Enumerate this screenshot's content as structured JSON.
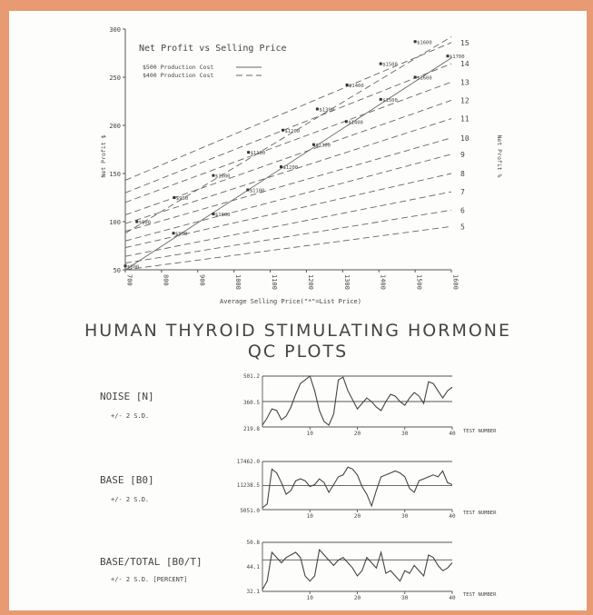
{
  "chart_data": [
    {
      "type": "line",
      "title": "Net Profit vs Selling Price",
      "xlabel": "Average Selling Price(\"*\"=List Price)",
      "ylabel": "Net Profit $",
      "ylabel_right": "Net Profit %",
      "xlim": [
        700,
        1600
      ],
      "ylim": [
        50,
        300
      ],
      "x_ticks": [
        "700",
        "800",
        "900",
        "1000",
        "1100",
        "1200",
        "1300",
        "1400",
        "1500",
        "1600"
      ],
      "y_ticks": [
        "50",
        "100",
        "150",
        "200",
        "250",
        "300"
      ],
      "right_ticks": [
        "5",
        "6",
        "7",
        "8",
        "9",
        "10",
        "11",
        "12",
        "13",
        "14",
        "15"
      ],
      "legend": [
        {
          "name": "$500 Production Cost",
          "style": "solid"
        },
        {
          "name": "$400 Production Cost",
          "style": "dashed"
        }
      ],
      "percent_lines": [
        {
          "pct": 5,
          "y_at_700": 50,
          "y_at_1600": 95
        },
        {
          "pct": 6,
          "y_at_700": 57,
          "y_at_1600": 112
        },
        {
          "pct": 7,
          "y_at_700": 64,
          "y_at_1600": 131
        },
        {
          "pct": 8,
          "y_at_700": 73,
          "y_at_1600": 150
        },
        {
          "pct": 9,
          "y_at_700": 80,
          "y_at_1600": 170
        },
        {
          "pct": 10,
          "y_at_700": 90,
          "y_at_1600": 187
        },
        {
          "pct": 11,
          "y_at_700": 98,
          "y_at_1600": 207
        },
        {
          "pct": 12,
          "y_at_700": 107,
          "y_at_1600": 226
        },
        {
          "pct": 13,
          "y_at_700": 120,
          "y_at_1600": 245
        },
        {
          "pct": 14,
          "y_at_700": 130,
          "y_at_1600": 264
        },
        {
          "pct": 15,
          "y_at_700": 143,
          "y_at_1600": 286
        }
      ],
      "series": [
        {
          "name": "$500 Production Cost",
          "style": "solid",
          "x": [
            700,
            1600
          ],
          "y": [
            50,
            270
          ],
          "points": [
            {
              "x": 700,
              "y": 54,
              "label": "$800"
            },
            {
              "x": 833,
              "y": 88,
              "label": "$900"
            },
            {
              "x": 943,
              "y": 108,
              "label": "$1000"
            },
            {
              "x": 1038,
              "y": 133,
              "label": "$1100"
            },
            {
              "x": 1130,
              "y": 157,
              "label": "$1200"
            },
            {
              "x": 1220,
              "y": 180,
              "label": "$1300"
            },
            {
              "x": 1310,
              "y": 204,
              "label": "$1400"
            },
            {
              "x": 1405,
              "y": 227,
              "label": "$1500"
            },
            {
              "x": 1500,
              "y": 250,
              "label": "$1600"
            },
            {
              "x": 1590,
              "y": 272,
              "label": "$1700"
            }
          ]
        },
        {
          "name": "$400 Production Cost",
          "style": "dashed",
          "x": [
            700,
            1600
          ],
          "y": [
            88,
            292
          ],
          "points": [
            {
              "x": 732,
              "y": 100,
              "label": "$800"
            },
            {
              "x": 835,
              "y": 125,
              "label": "$900"
            },
            {
              "x": 943,
              "y": 148,
              "label": "$1000"
            },
            {
              "x": 1040,
              "y": 172,
              "label": "$1100"
            },
            {
              "x": 1135,
              "y": 195,
              "label": "$1200"
            },
            {
              "x": 1230,
              "y": 217,
              "label": "$1300"
            },
            {
              "x": 1312,
              "y": 242,
              "label": "$1400"
            },
            {
              "x": 1405,
              "y": 264,
              "label": "$1500"
            },
            {
              "x": 1500,
              "y": 287,
              "label": "$1600"
            }
          ]
        }
      ]
    },
    {
      "type": "line",
      "title": "NOISE [N]",
      "subtitle": "+/- 2 S.D.",
      "xlabel": "TEST NUMBER",
      "x_ticks": [
        "10",
        "20",
        "30",
        "40"
      ],
      "xlim": [
        0,
        40
      ],
      "ylim": [
        219.8,
        501.2
      ],
      "center": 360.5,
      "y_labels": [
        "501.2",
        "360.5",
        "219.8"
      ],
      "values": [
        270,
        320,
        310,
        260,
        280,
        330,
        400,
        460,
        480,
        501,
        420,
        310,
        250,
        230,
        290,
        480,
        495,
        420,
        370,
        320,
        350,
        380,
        360,
        330,
        310,
        360,
        400,
        390,
        360,
        340,
        380,
        410,
        390,
        350,
        470,
        460,
        420,
        380,
        420,
        440
      ]
    },
    {
      "type": "line",
      "title": "BASE [B0]",
      "subtitle": "+/- 2 S.D.",
      "xlabel": "TEST NUMBER",
      "x_ticks": [
        "10",
        "20",
        "30",
        "40"
      ],
      "xlim": [
        0,
        40
      ],
      "ylim": [
        5051.0,
        17462.0
      ],
      "center": 11238.5,
      "y_labels": [
        "17462.0",
        "11238.5",
        "5051.0"
      ],
      "values": [
        6500,
        15500,
        14500,
        12000,
        9000,
        10000,
        12500,
        13000,
        12500,
        11000,
        11500,
        13000,
        12000,
        9500,
        11500,
        13500,
        14000,
        16000,
        15500,
        14000,
        11000,
        9000,
        6000,
        10000,
        13500,
        14000,
        14500,
        15000,
        14500,
        13500,
        10500,
        9500,
        12500,
        13000,
        13500,
        14000,
        13500,
        15000,
        12000,
        11500
      ]
    },
    {
      "type": "line",
      "title": "BASE/TOTAL [B0/T]",
      "subtitle": "+/- 2 S.D. [PERCENT]",
      "xlabel": "TEST NUMBER",
      "x_ticks": [
        "10",
        "20",
        "30",
        "40"
      ],
      "xlim": [
        0,
        40
      ],
      "ylim": [
        32.1,
        50.8
      ],
      "center": 44.1,
      "y_labels": [
        "50.8",
        "44.1",
        "32.1"
      ],
      "values": [
        36,
        47,
        45,
        43,
        45,
        46,
        47,
        45,
        38,
        36,
        38,
        48,
        46,
        44,
        42,
        44,
        45,
        43,
        41,
        38,
        40,
        45,
        43,
        41,
        47,
        39,
        40,
        38,
        36,
        40,
        39,
        42,
        40,
        38,
        46,
        45,
        42,
        40,
        41,
        43
      ]
    }
  ],
  "page": {
    "heading_line1": "HUMAN THYROID STIMULATING HORMONE",
    "heading_line2": "QC PLOTS"
  }
}
